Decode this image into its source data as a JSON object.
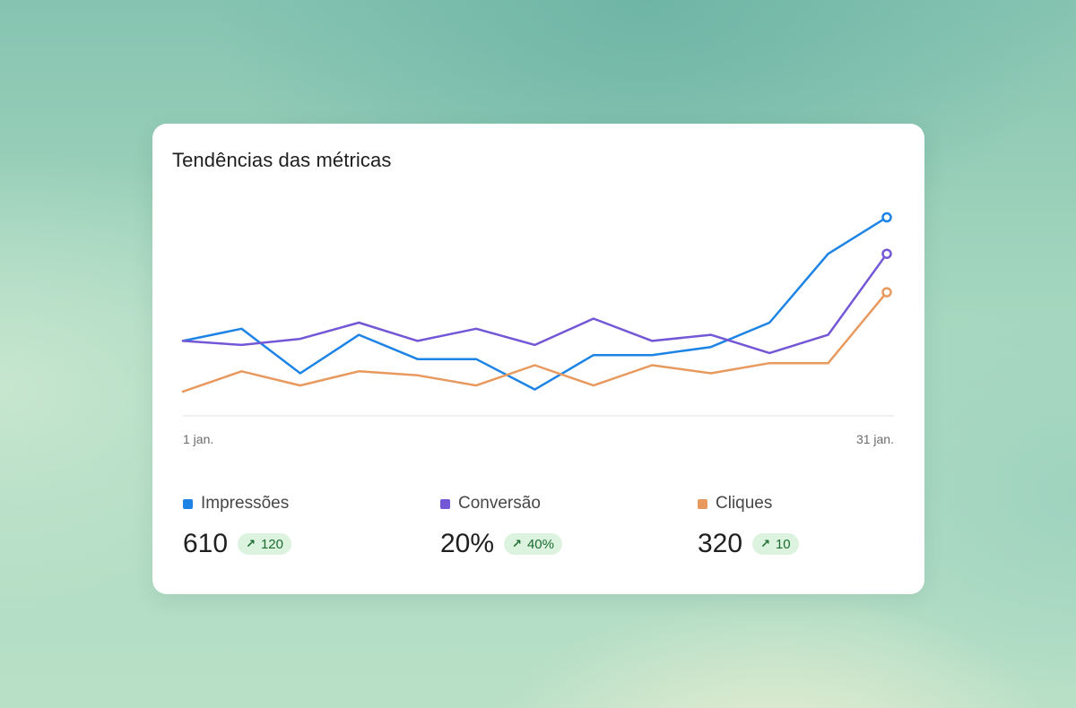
{
  "card": {
    "title": "Tendências das métricas"
  },
  "chart_data": {
    "type": "line",
    "x_labels": [
      "1 jan.",
      "31 jan."
    ],
    "y_range": [
      0,
      100
    ],
    "grid": false,
    "series": [
      {
        "name": "Impressões",
        "color": "#1d84e6",
        "values": [
          37,
          43,
          21,
          40,
          28,
          28,
          13,
          30,
          30,
          34,
          46,
          80,
          98
        ]
      },
      {
        "name": "Conversão",
        "color": "#7457d6",
        "values": [
          37,
          35,
          38,
          46,
          37,
          43,
          35,
          48,
          37,
          40,
          31,
          40,
          80
        ]
      },
      {
        "name": "Cliques",
        "color": "#e8995e",
        "values": [
          12,
          22,
          15,
          22,
          20,
          15,
          25,
          15,
          25,
          21,
          26,
          26,
          61
        ]
      }
    ]
  },
  "legend": [
    {
      "name": "Impressões",
      "color": "#1d84e6",
      "value": "610",
      "change": "120",
      "icon": "arrow-up-right-icon"
    },
    {
      "name": "Conversão",
      "color": "#7457d6",
      "value": "20%",
      "change": "40%",
      "icon": "arrow-up-right-icon"
    },
    {
      "name": "Cliques",
      "color": "#e8995e",
      "value": "320",
      "change": "10",
      "icon": "arrow-up-right-icon"
    }
  ]
}
